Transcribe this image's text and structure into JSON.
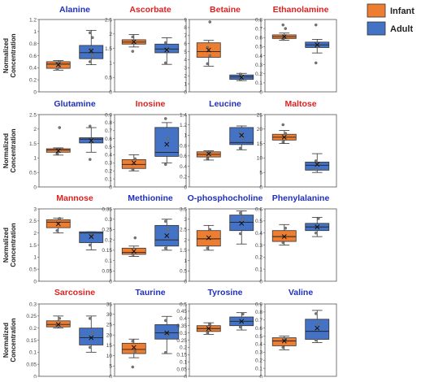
{
  "figure": {
    "ylabel": "Normalized\nConcentration",
    "legend": [
      {
        "name": "Infant",
        "color": "#ED7D31"
      },
      {
        "name": "Adult",
        "color": "#4472C4"
      }
    ],
    "legend_position": "top-right",
    "colors": {
      "infant": "#ED7D31",
      "adult": "#4472C4",
      "title_red": "#E02020",
      "title_blue": "#1F2FBF"
    }
  },
  "chart_data": [
    {
      "type": "box",
      "title": "Alanine",
      "title_color": "blue",
      "ylim": [
        0,
        1.2
      ],
      "yticks": [
        "0",
        "0.2",
        "0.4",
        "0.6",
        "0.8",
        "1",
        "1.2"
      ],
      "series": [
        {
          "name": "Infant",
          "whisker": [
            0.36,
            0.52
          ],
          "q1": 0.39,
          "median": 0.46,
          "q3": 0.5,
          "mean": 0.45,
          "points": [
            0.38,
            0.42,
            0.48,
            0.5
          ]
        },
        {
          "name": "Adult",
          "whisker": [
            0.45,
            1.02
          ],
          "q1": 0.55,
          "median": 0.65,
          "q3": 0.77,
          "mean": 0.68,
          "points": [
            0.5,
            0.6,
            0.7,
            0.9,
            0.98
          ]
        }
      ]
    },
    {
      "type": "box",
      "title": "Ascorbate",
      "title_color": "red",
      "ylim": [
        0,
        2.5
      ],
      "yticks": [
        "0",
        "0.5",
        "1",
        "1.5",
        "2",
        "2.5"
      ],
      "series": [
        {
          "name": "Infant",
          "whisker": [
            1.55,
            1.98
          ],
          "q1": 1.65,
          "median": 1.72,
          "q3": 1.8,
          "mean": 1.73,
          "points": [
            1.4,
            1.7,
            1.9
          ]
        },
        {
          "name": "Adult",
          "whisker": [
            0.95,
            1.87
          ],
          "q1": 1.35,
          "median": 1.48,
          "q3": 1.65,
          "mean": 1.45,
          "points": [
            1.0,
            1.5,
            1.7
          ]
        }
      ]
    },
    {
      "type": "box",
      "title": "Betaine",
      "title_color": "red",
      "ylim": [
        0,
        9
      ],
      "yticks": [
        "0",
        "1",
        "2",
        "3",
        "4",
        "5",
        "6",
        "7",
        "8",
        "9"
      ],
      "series": [
        {
          "name": "Infant",
          "whisker": [
            3.2,
            6.4
          ],
          "q1": 4.3,
          "median": 5.0,
          "q3": 6.1,
          "mean": 5.2,
          "points": [
            3.5,
            4.5,
            5.5,
            8.7
          ]
        },
        {
          "name": "Adult",
          "whisker": [
            1.4,
            2.3
          ],
          "q1": 1.55,
          "median": 1.85,
          "q3": 2.1,
          "mean": 1.8,
          "points": [
            1.5,
            1.9,
            2.2
          ]
        }
      ]
    },
    {
      "type": "box",
      "title": "Ethanolamine",
      "title_color": "red",
      "ylim": [
        0,
        0.8
      ],
      "yticks": [
        "0",
        "0.1",
        "0.2",
        "0.3",
        "0.4",
        "0.5",
        "0.6",
        "0.7",
        "0.8"
      ],
      "series": [
        {
          "name": "Infant",
          "whisker": [
            0.57,
            0.65
          ],
          "q1": 0.59,
          "median": 0.61,
          "q3": 0.63,
          "mean": 0.61,
          "points": [
            0.58,
            0.7,
            0.74
          ]
        },
        {
          "name": "Adult",
          "whisker": [
            0.43,
            0.58
          ],
          "q1": 0.49,
          "median": 0.52,
          "q3": 0.55,
          "mean": 0.52,
          "points": [
            0.32,
            0.5,
            0.74
          ]
        }
      ]
    },
    {
      "type": "box",
      "title": "Glutamine",
      "title_color": "blue",
      "ylim": [
        0,
        2.5
      ],
      "yticks": [
        "0",
        "0.5",
        "1",
        "1.5",
        "2",
        "2.5"
      ],
      "series": [
        {
          "name": "Infant",
          "whisker": [
            1.1,
            1.35
          ],
          "q1": 1.2,
          "median": 1.28,
          "q3": 1.32,
          "mean": 1.25,
          "points": [
            1.15,
            2.05
          ]
        },
        {
          "name": "Adult",
          "whisker": [
            1.2,
            2.05
          ],
          "q1": 1.52,
          "median": 1.65,
          "q3": 1.7,
          "mean": 1.6,
          "points": [
            0.95,
            1.6,
            2.1
          ]
        }
      ]
    },
    {
      "type": "box",
      "title": "Inosine",
      "title_color": "red",
      "ylim": [
        0,
        0.9
      ],
      "yticks": [
        "0",
        "0.1",
        "0.2",
        "0.3",
        "0.4",
        "0.5",
        "0.6",
        "0.7",
        "0.8",
        "0.9"
      ],
      "series": [
        {
          "name": "Infant",
          "whisker": [
            0.2,
            0.4
          ],
          "q1": 0.23,
          "median": 0.28,
          "q3": 0.34,
          "mean": 0.3,
          "points": [
            0.22,
            0.35
          ]
        },
        {
          "name": "Adult",
          "whisker": [
            0.3,
            0.8
          ],
          "q1": 0.38,
          "median": 0.43,
          "q3": 0.74,
          "mean": 0.53,
          "points": [
            0.28,
            0.6,
            0.85
          ]
        }
      ]
    },
    {
      "type": "box",
      "title": "Leucine",
      "title_color": "blue",
      "ylim": [
        0,
        1.4
      ],
      "yticks": [
        "0",
        "0.2",
        "0.4",
        "0.6",
        "0.8",
        "1",
        "1.2",
        "1.4"
      ],
      "series": [
        {
          "name": "Infant",
          "whisker": [
            0.52,
            0.7
          ],
          "q1": 0.58,
          "median": 0.63,
          "q3": 0.68,
          "mean": 0.64,
          "points": [
            0.55,
            0.65
          ]
        },
        {
          "name": "Adult",
          "whisker": [
            0.72,
            1.18
          ],
          "q1": 0.82,
          "median": 0.86,
          "q3": 1.15,
          "mean": 1.0,
          "points": [
            0.75,
            0.95,
            1.05
          ]
        }
      ]
    },
    {
      "type": "box",
      "title": "Maltose",
      "title_color": "red",
      "ylim": [
        0,
        25
      ],
      "yticks": [
        "0",
        "5",
        "10",
        "15",
        "20",
        "25"
      ],
      "series": [
        {
          "name": "Infant",
          "whisker": [
            15,
            19.5
          ],
          "q1": 16.2,
          "median": 17.2,
          "q3": 18.2,
          "mean": 17.2,
          "points": [
            15.5,
            18.5,
            21.5
          ]
        },
        {
          "name": "Adult",
          "whisker": [
            5,
            11.5
          ],
          "q1": 5.8,
          "median": 7.5,
          "q3": 8.6,
          "mean": 7.8,
          "points": [
            6,
            8,
            9
          ]
        }
      ]
    },
    {
      "type": "box",
      "title": "Mannose",
      "title_color": "red",
      "ylim": [
        0,
        3
      ],
      "yticks": [
        "0",
        "0.5",
        "1",
        "1.5",
        "2",
        "2.5",
        "3"
      ],
      "series": [
        {
          "name": "Infant",
          "whisker": [
            2.0,
            2.62
          ],
          "q1": 2.22,
          "median": 2.45,
          "q3": 2.55,
          "mean": 2.38,
          "points": [
            2.1,
            2.6
          ]
        },
        {
          "name": "Adult",
          "whisker": [
            1.3,
            2.05
          ],
          "q1": 1.6,
          "median": 2.0,
          "q3": 2.05,
          "mean": 1.85,
          "points": [
            1.5,
            1.9
          ]
        }
      ]
    },
    {
      "type": "box",
      "title": "Methionine",
      "title_color": "blue",
      "ylim": [
        0,
        0.35
      ],
      "yticks": [
        "0",
        "0.05",
        "0.1",
        "0.15",
        "0.2",
        "0.25",
        "0.3",
        "0.35"
      ],
      "series": [
        {
          "name": "Infant",
          "whisker": [
            0.12,
            0.17
          ],
          "q1": 0.13,
          "median": 0.14,
          "q3": 0.16,
          "mean": 0.145,
          "points": [
            0.13,
            0.21
          ]
        },
        {
          "name": "Adult",
          "whisker": [
            0.15,
            0.3
          ],
          "q1": 0.17,
          "median": 0.2,
          "q3": 0.27,
          "mean": 0.22,
          "points": [
            0.16,
            0.25,
            0.29
          ]
        }
      ]
    },
    {
      "type": "box",
      "title": "O-phosphocholine",
      "title_color": "blue",
      "ylim": [
        0,
        3.5
      ],
      "yticks": [
        "0",
        "0.5",
        "1",
        "1.5",
        "2",
        "2.5",
        "3",
        "3.5"
      ],
      "series": [
        {
          "name": "Infant",
          "whisker": [
            1.5,
            2.7
          ],
          "q1": 1.7,
          "median": 2.05,
          "q3": 2.45,
          "mean": 2.1,
          "points": [
            1.6,
            2.5
          ]
        },
        {
          "name": "Adult",
          "whisker": [
            1.8,
            3.4
          ],
          "q1": 2.45,
          "median": 2.85,
          "q3": 3.2,
          "mean": 2.8,
          "points": [
            2.3,
            3.0,
            3.3
          ]
        }
      ]
    },
    {
      "type": "box",
      "title": "Phenylalanine",
      "title_color": "blue",
      "ylim": [
        0,
        0.6
      ],
      "yticks": [
        "0",
        "0.1",
        "0.2",
        "0.3",
        "0.4",
        "0.5",
        "0.6"
      ],
      "series": [
        {
          "name": "Infant",
          "whisker": [
            0.3,
            0.47
          ],
          "q1": 0.33,
          "median": 0.37,
          "q3": 0.42,
          "mean": 0.37,
          "points": [
            0.32,
            0.44
          ]
        },
        {
          "name": "Adult",
          "whisker": [
            0.37,
            0.53
          ],
          "q1": 0.42,
          "median": 0.45,
          "q3": 0.48,
          "mean": 0.45,
          "points": [
            0.4,
            0.52
          ]
        }
      ]
    },
    {
      "type": "box",
      "title": "Sarcosine",
      "title_color": "red",
      "ylim": [
        0,
        0.3
      ],
      "yticks": [
        "0",
        "0.05",
        "0.1",
        "0.15",
        "0.2",
        "0.25",
        "0.3"
      ],
      "series": [
        {
          "name": "Infant",
          "whisker": [
            0.2,
            0.25
          ],
          "q1": 0.205,
          "median": 0.215,
          "q3": 0.23,
          "mean": 0.215,
          "points": [
            0.21,
            0.24
          ]
        },
        {
          "name": "Adult",
          "whisker": [
            0.1,
            0.25
          ],
          "q1": 0.13,
          "median": 0.16,
          "q3": 0.2,
          "mean": 0.16,
          "points": [
            0.12,
            0.18,
            0.24
          ]
        }
      ]
    },
    {
      "type": "box",
      "title": "Taurine",
      "title_color": "blue",
      "ylim": [
        0,
        35
      ],
      "yticks": [
        "0",
        "5",
        "10",
        "15",
        "20",
        "25",
        "30",
        "35"
      ],
      "series": [
        {
          "name": "Infant",
          "whisker": [
            9,
            18
          ],
          "q1": 11,
          "median": 13,
          "q3": 16,
          "mean": 14,
          "points": [
            4.5,
            12,
            17
          ]
        },
        {
          "name": "Adult",
          "whisker": [
            11,
            29
          ],
          "q1": 18,
          "median": 21,
          "q3": 25,
          "mean": 21,
          "points": [
            11.5,
            20,
            27
          ]
        }
      ]
    },
    {
      "type": "box",
      "title": "Tyrosine",
      "title_color": "blue",
      "ylim": [
        0,
        0.5
      ],
      "yticks": [
        "0",
        "0.05",
        "0.1",
        "0.15",
        "0.2",
        "0.25",
        "0.3",
        "0.35",
        "0.4",
        "0.45",
        "0.5"
      ],
      "series": [
        {
          "name": "Infant",
          "whisker": [
            0.29,
            0.37
          ],
          "q1": 0.31,
          "median": 0.33,
          "q3": 0.35,
          "mean": 0.33,
          "points": [
            0.3,
            0.36
          ]
        },
        {
          "name": "Adult",
          "whisker": [
            0.32,
            0.44
          ],
          "q1": 0.35,
          "median": 0.38,
          "q3": 0.41,
          "mean": 0.38,
          "points": [
            0.34,
            0.43
          ]
        }
      ]
    },
    {
      "type": "box",
      "title": "Valine",
      "title_color": "blue",
      "ylim": [
        0,
        0.9
      ],
      "yticks": [
        "0",
        "0.1",
        "0.2",
        "0.3",
        "0.4",
        "0.5",
        "0.6",
        "0.7",
        "0.8",
        "0.9"
      ],
      "series": [
        {
          "name": "Infant",
          "whisker": [
            0.33,
            0.5
          ],
          "q1": 0.38,
          "median": 0.44,
          "q3": 0.48,
          "mean": 0.44,
          "points": [
            0.36,
            0.46
          ]
        },
        {
          "name": "Adult",
          "whisker": [
            0.42,
            0.82
          ],
          "q1": 0.46,
          "median": 0.56,
          "q3": 0.71,
          "mean": 0.6,
          "points": [
            0.45,
            0.65,
            0.78
          ]
        }
      ]
    }
  ]
}
